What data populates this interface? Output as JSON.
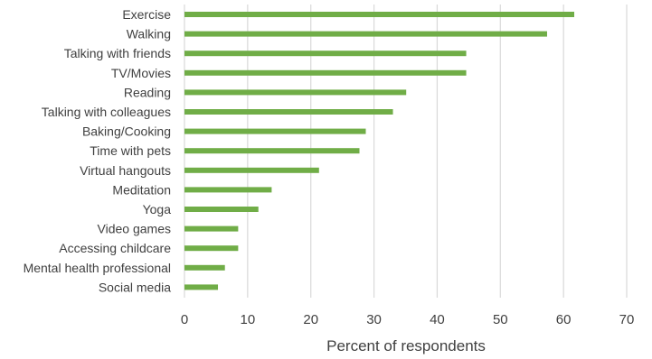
{
  "chart_data": {
    "type": "bar",
    "orientation": "horizontal",
    "categories": [
      "Exercise",
      "Walking",
      "Talking with friends",
      "TV/Movies",
      "Reading",
      "Talking with colleagues",
      "Baking/Cooking",
      "Time with pets",
      "Virtual hangouts",
      "Meditation",
      "Yoga",
      "Video games",
      "Accessing childcare",
      "Mental health professional",
      "Social media"
    ],
    "values": [
      61.7,
      57.4,
      44.6,
      44.6,
      35.1,
      33.0,
      28.7,
      27.7,
      21.3,
      13.8,
      11.7,
      8.5,
      8.5,
      6.4,
      5.3
    ],
    "xlabel": "Percent of respondents",
    "ylabel": "",
    "xlim": [
      0,
      70
    ],
    "xticks": [
      "0",
      "10",
      "20",
      "30",
      "40",
      "50",
      "60",
      "70"
    ],
    "grid": "vertical",
    "bar_color": "#70ad47",
    "grid_color": "#d9d9d9"
  }
}
